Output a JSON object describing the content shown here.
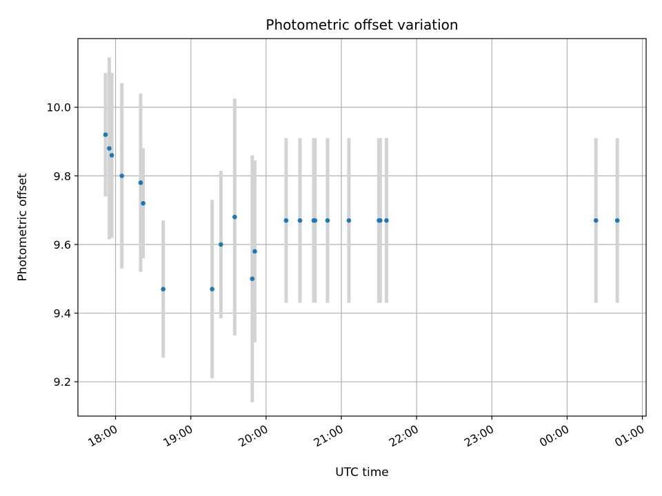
{
  "chart_data": {
    "type": "scatter",
    "title": "Photometric offset variation",
    "xlabel": "UTC time",
    "ylabel": "Photometric offset",
    "x_axis": {
      "kind": "time",
      "min": "17:30",
      "max": "25:03",
      "ticks": [
        "18:00",
        "19:00",
        "20:00",
        "21:00",
        "22:00",
        "23:00",
        "00:00",
        "01:00"
      ]
    },
    "y_axis": {
      "min": 9.1,
      "max": 10.2,
      "ticks": [
        "9.2",
        "9.4",
        "9.6",
        "9.8",
        "10.0"
      ]
    },
    "grid": true,
    "colors": {
      "points": "#1f77b4",
      "errorbars": "#d3d3d3"
    },
    "series": [
      {
        "points": [
          {
            "x": "17:52",
            "y": 9.92,
            "err": 0.18
          },
          {
            "x": "17:55",
            "y": 9.88,
            "err": 0.265
          },
          {
            "x": "17:57",
            "y": 9.86,
            "err": 0.24
          },
          {
            "x": "18:05",
            "y": 9.8,
            "err": 0.27
          },
          {
            "x": "18:20",
            "y": 9.78,
            "err": 0.26
          },
          {
            "x": "18:22",
            "y": 9.72,
            "err": 0.16
          },
          {
            "x": "18:38",
            "y": 9.47,
            "err": 0.2
          },
          {
            "x": "19:17",
            "y": 9.47,
            "err": 0.26
          },
          {
            "x": "19:24",
            "y": 9.6,
            "err": 0.215
          },
          {
            "x": "19:35",
            "y": 9.68,
            "err": 0.345
          },
          {
            "x": "19:49",
            "y": 9.5,
            "err": 0.36
          },
          {
            "x": "19:51",
            "y": 9.58,
            "err": 0.265
          },
          {
            "x": "20:16",
            "y": 9.67,
            "err": 0.24
          },
          {
            "x": "20:27",
            "y": 9.67,
            "err": 0.24
          },
          {
            "x": "20:38",
            "y": 9.67,
            "err": 0.24
          },
          {
            "x": "20:39",
            "y": 9.67,
            "err": 0.24
          },
          {
            "x": "20:49",
            "y": 9.67,
            "err": 0.24
          },
          {
            "x": "21:06",
            "y": 9.67,
            "err": 0.24
          },
          {
            "x": "21:30",
            "y": 9.67,
            "err": 0.24
          },
          {
            "x": "21:31",
            "y": 9.67,
            "err": 0.24
          },
          {
            "x": "21:36",
            "y": 9.67,
            "err": 0.24
          },
          {
            "x": "00:23",
            "y": 9.67,
            "err": 0.24
          },
          {
            "x": "00:40",
            "y": 9.67,
            "err": 0.24
          }
        ]
      }
    ]
  }
}
